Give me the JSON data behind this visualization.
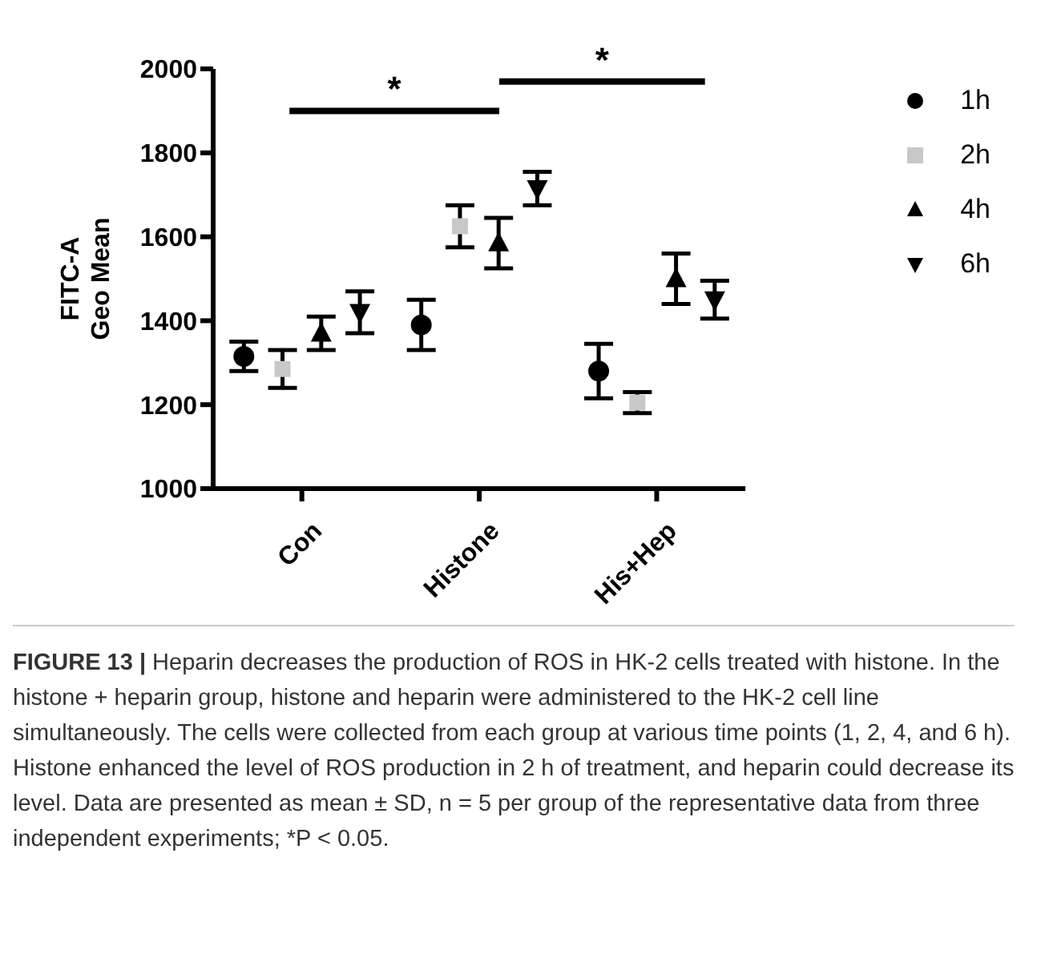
{
  "chart_data": {
    "type": "scatter",
    "ylabel": "FITC-A Geo Mean",
    "categories": [
      "Con",
      "Histone",
      "His+Hep"
    ],
    "ylim": [
      1000,
      2000
    ],
    "yticks": [
      1000,
      1200,
      1400,
      1600,
      1800,
      2000
    ],
    "legend": "top right",
    "series": [
      {
        "name": "1h",
        "color": "#000000",
        "marker": "circle",
        "values": [
          1315,
          1390,
          1280
        ],
        "errors": [
          35,
          60,
          65
        ]
      },
      {
        "name": "2h",
        "color": "#c8c8c8",
        "marker": "square",
        "values": [
          1285,
          1625,
          1205
        ],
        "errors": [
          45,
          50,
          25
        ]
      },
      {
        "name": "4h",
        "color": "#000000",
        "marker": "triangle",
        "values": [
          1370,
          1585,
          1500
        ],
        "errors": [
          40,
          60,
          60
        ]
      },
      {
        "name": "6h",
        "color": "#000000",
        "marker": "triangle-down",
        "values": [
          1420,
          1715,
          1450
        ],
        "errors": [
          50,
          40,
          45
        ]
      }
    ],
    "annotations": [
      "*",
      "*",
      "FIGURE 13 | Heparin decreases the production of ROS in HK-2 cells treated with histone. In the histone + heparin group, histone and heparin were administered to the HK-2 cell line simultaneously. The cells were collected from each group at various time points (1, 2, 4, and 6 h). Histone enhanced the level of ROS production in 2 h of treatment, and heparin could decrease its level. Data are presented as mean ± SD, n = 5 per group of the representative data from three independent experiments; *P < 0.05."
    ]
  }
}
